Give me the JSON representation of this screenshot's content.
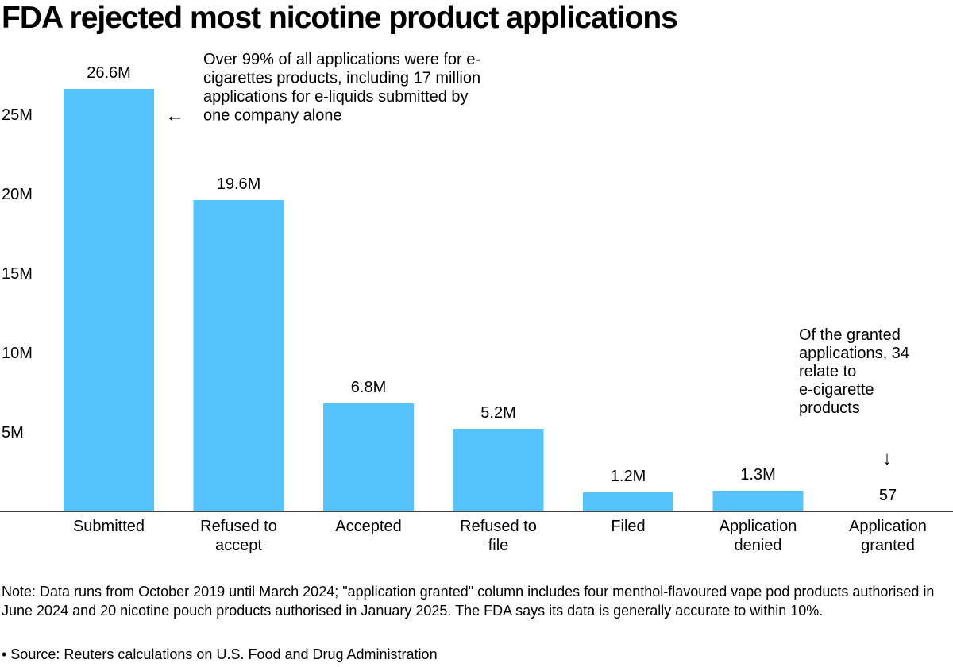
{
  "chart_data": {
    "type": "bar",
    "title": "FDA rejected most nicotine product applications",
    "categories": [
      [
        "Submitted"
      ],
      [
        "Refused to",
        "accept"
      ],
      [
        "Accepted"
      ],
      [
        "Refused to",
        "file"
      ],
      [
        "Filed"
      ],
      [
        "Application",
        "denied"
      ],
      [
        "Application",
        "granted"
      ]
    ],
    "values": [
      26600000,
      19600000,
      6800000,
      5200000,
      1200000,
      1300000,
      57
    ],
    "data_labels": [
      "26.6M",
      "19.6M",
      "6.8M",
      "5.2M",
      "1.2M",
      "1.3M",
      "57"
    ],
    "ylim": [
      0,
      26600000
    ],
    "yticks": [
      {
        "value": 5000000,
        "label": "5M"
      },
      {
        "value": 10000000,
        "label": "10M"
      },
      {
        "value": 15000000,
        "label": "15M"
      },
      {
        "value": 20000000,
        "label": "20M"
      },
      {
        "value": 25000000,
        "label": "25M"
      }
    ],
    "bar_color": "#55c4fc",
    "grid": false,
    "annotations": [
      {
        "lines": [
          "Over 99% of all applications were for e-",
          "cigarettes products, including 17 million",
          "applications for e-liquids submitted by",
          "one company alone"
        ],
        "arrow": "←",
        "target": "Submitted"
      },
      {
        "lines": [
          "Of the granted",
          "applications, 34",
          "relate to",
          "e-cigarette",
          "products"
        ],
        "arrow": "↓",
        "target": "Application granted"
      }
    ]
  },
  "note": "Note: Data runs from October 2019 until March 2024; \"application granted\" column includes four menthol-flavoured vape pod products authorised in June 2024 and 20 nicotine pouch products authorised in January 2025. The FDA says its data is generally accurate to within 10%.",
  "source": "• Source: Reuters calculations on U.S. Food and Drug Administration"
}
